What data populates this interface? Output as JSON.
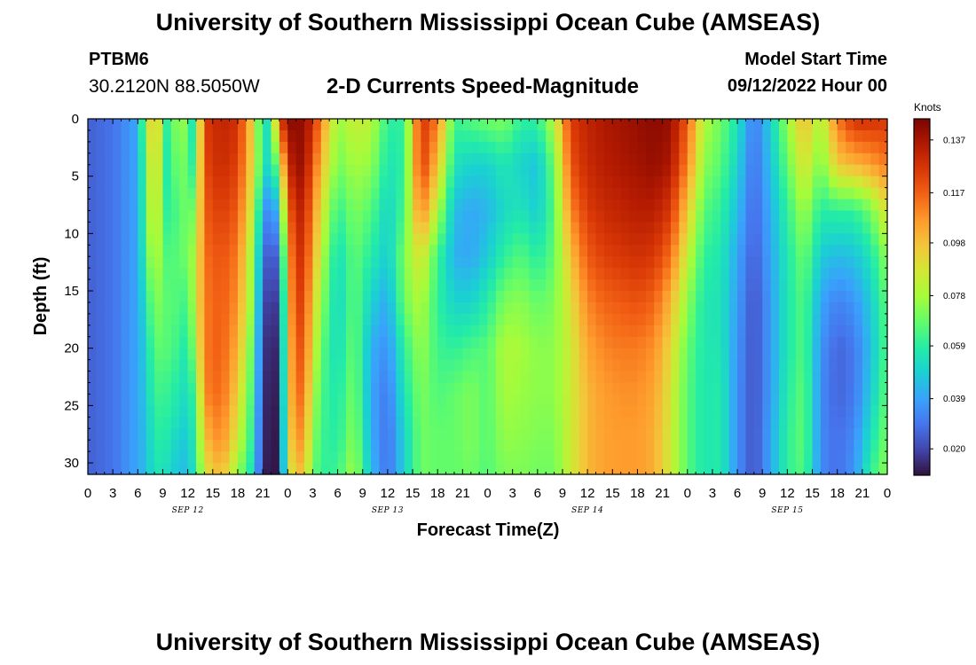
{
  "header": {
    "title": "University of Southern Mississippi Ocean Cube (AMSEAS)",
    "station": "PTBM6",
    "coords": "30.2120N  88.5050W",
    "plot_title": "2-D Currents Speed-Magnitude",
    "model_start_label": "Model Start Time",
    "model_start_value": "09/12/2022 Hour 00"
  },
  "footer": {
    "title": "University of Southern Mississippi Ocean Cube (AMSEAS)"
  },
  "chart_data": {
    "type": "heatmap",
    "title": "2-D Currents Speed-Magnitude",
    "xlabel": "Forecast Time(Z)",
    "ylabel": "Depth (ft)",
    "x_range_hours": [
      0,
      96
    ],
    "y_range_ft": [
      0,
      31
    ],
    "x_tick_labels": [
      "0",
      "3",
      "6",
      "9",
      "12",
      "15",
      "18",
      "21",
      "0",
      "3",
      "6",
      "9",
      "12",
      "15",
      "18",
      "21",
      "0",
      "3",
      "6",
      "9",
      "12",
      "15",
      "18",
      "21",
      "0",
      "3",
      "6",
      "9",
      "12",
      "15",
      "18",
      "21",
      "0"
    ],
    "date_labels": [
      {
        "label": "SEP 12",
        "hour": 12
      },
      {
        "label": "SEP 13",
        "hour": 36
      },
      {
        "label": "SEP 14",
        "hour": 60
      },
      {
        "label": "SEP 15",
        "hour": 84
      }
    ],
    "y_tick_labels": [
      "0",
      "5",
      "10",
      "15",
      "20",
      "25",
      "30"
    ],
    "y_ticks": [
      0,
      5,
      10,
      15,
      20,
      25,
      30
    ],
    "colorbar": {
      "unit": "Knots",
      "tick_labels": [
        "0.137",
        "0.117",
        "0.098",
        "0.078",
        "0.059",
        "0.039",
        "0.020"
      ],
      "tick_values": [
        0.137,
        0.117,
        0.098,
        0.078,
        0.059,
        0.039,
        0.02
      ],
      "range": [
        0.01,
        0.145
      ],
      "colormap": [
        "#30123b",
        "#4145ab",
        "#4675ed",
        "#39a2fc",
        "#1bcfd4",
        "#24eca6",
        "#61fc6c",
        "#a4fc3b",
        "#d1e834",
        "#f3c63a",
        "#fe9b2d",
        "#f36315",
        "#d93806",
        "#b11901",
        "#7a0402"
      ]
    },
    "depths_ft": [
      0,
      4,
      8,
      12,
      16,
      20,
      24,
      28,
      31
    ],
    "times_hours": [
      0,
      3,
      6,
      7,
      8,
      9,
      10,
      11,
      12,
      13,
      14,
      16,
      18,
      20,
      21,
      22,
      23,
      24,
      25,
      26,
      27,
      28,
      30,
      32,
      34,
      36,
      38,
      40,
      42,
      44,
      46,
      48,
      50,
      52,
      54,
      56,
      58,
      60,
      62,
      64,
      66,
      68,
      70,
      72,
      74,
      76,
      78,
      80,
      82,
      84,
      86,
      88,
      90,
      92,
      94,
      96
    ],
    "speed_knots": [
      [
        0.025,
        0.025,
        0.025,
        0.025,
        0.025,
        0.025,
        0.025,
        0.025,
        0.025
      ],
      [
        0.029,
        0.029,
        0.029,
        0.029,
        0.029,
        0.029,
        0.029,
        0.029,
        0.029
      ],
      [
        0.04,
        0.04,
        0.04,
        0.04,
        0.04,
        0.04,
        0.04,
        0.04,
        0.04
      ],
      [
        0.08,
        0.07,
        0.068,
        0.063,
        0.055,
        0.05,
        0.048,
        0.045,
        0.045
      ],
      [
        0.102,
        0.098,
        0.093,
        0.085,
        0.075,
        0.068,
        0.062,
        0.058,
        0.055
      ],
      [
        0.075,
        0.07,
        0.068,
        0.068,
        0.068,
        0.066,
        0.062,
        0.058,
        0.055
      ],
      [
        0.045,
        0.045,
        0.052,
        0.062,
        0.066,
        0.066,
        0.06,
        0.055,
        0.05
      ],
      [
        0.098,
        0.09,
        0.075,
        0.07,
        0.065,
        0.06,
        0.055,
        0.048,
        0.045
      ],
      [
        0.05,
        0.05,
        0.062,
        0.068,
        0.062,
        0.056,
        0.052,
        0.048,
        0.045
      ],
      [
        0.065,
        0.07,
        0.078,
        0.084,
        0.086,
        0.08,
        0.066,
        0.06,
        0.058
      ],
      [
        0.125,
        0.122,
        0.118,
        0.114,
        0.112,
        0.112,
        0.11,
        0.098,
        0.088
      ],
      [
        0.132,
        0.13,
        0.125,
        0.12,
        0.118,
        0.118,
        0.116,
        0.11,
        0.1
      ],
      [
        0.128,
        0.124,
        0.118,
        0.112,
        0.108,
        0.102,
        0.094,
        0.086,
        0.075
      ],
      [
        0.09,
        0.088,
        0.08,
        0.07,
        0.068,
        0.062,
        0.058,
        0.054,
        0.05
      ],
      [
        0.05,
        0.056,
        0.04,
        0.03,
        0.022,
        0.018,
        0.016,
        0.015,
        0.014
      ],
      [
        0.06,
        0.05,
        0.03,
        0.02,
        0.016,
        0.013,
        0.012,
        0.011,
        0.01
      ],
      [
        0.12,
        0.08,
        0.05,
        0.03,
        0.02,
        0.016,
        0.013,
        0.012,
        0.012
      ],
      [
        0.142,
        0.128,
        0.112,
        0.1,
        0.095,
        0.092,
        0.09,
        0.085,
        0.08
      ],
      [
        0.142,
        0.14,
        0.132,
        0.128,
        0.125,
        0.12,
        0.116,
        0.11,
        0.1
      ],
      [
        0.14,
        0.138,
        0.132,
        0.126,
        0.122,
        0.118,
        0.112,
        0.104,
        0.095
      ],
      [
        0.13,
        0.12,
        0.11,
        0.104,
        0.096,
        0.09,
        0.082,
        0.075,
        0.07
      ],
      [
        0.11,
        0.1,
        0.09,
        0.082,
        0.075,
        0.068,
        0.064,
        0.062,
        0.06
      ],
      [
        0.075,
        0.07,
        0.06,
        0.052,
        0.05,
        0.052,
        0.056,
        0.058,
        0.062
      ],
      [
        0.085,
        0.078,
        0.072,
        0.068,
        0.068,
        0.07,
        0.072,
        0.075,
        0.078
      ],
      [
        0.082,
        0.075,
        0.066,
        0.058,
        0.05,
        0.042,
        0.04,
        0.042,
        0.045
      ],
      [
        0.06,
        0.055,
        0.05,
        0.048,
        0.04,
        0.035,
        0.03,
        0.028,
        0.028
      ],
      [
        0.06,
        0.06,
        0.064,
        0.072,
        0.07,
        0.06,
        0.055,
        0.05,
        0.05
      ],
      [
        0.128,
        0.126,
        0.112,
        0.09,
        0.08,
        0.076,
        0.072,
        0.07,
        0.07
      ],
      [
        0.112,
        0.098,
        0.08,
        0.062,
        0.06,
        0.062,
        0.065,
        0.068,
        0.068
      ],
      [
        0.062,
        0.055,
        0.045,
        0.042,
        0.05,
        0.06,
        0.068,
        0.068,
        0.068
      ],
      [
        0.066,
        0.05,
        0.04,
        0.04,
        0.05,
        0.064,
        0.072,
        0.072,
        0.07
      ],
      [
        0.07,
        0.05,
        0.043,
        0.048,
        0.058,
        0.066,
        0.066,
        0.066,
        0.065
      ],
      [
        0.072,
        0.056,
        0.052,
        0.06,
        0.072,
        0.08,
        0.078,
        0.075,
        0.072
      ],
      [
        0.06,
        0.05,
        0.055,
        0.066,
        0.074,
        0.078,
        0.076,
        0.074,
        0.072
      ],
      [
        0.06,
        0.046,
        0.048,
        0.058,
        0.068,
        0.074,
        0.074,
        0.072,
        0.07
      ],
      [
        0.082,
        0.07,
        0.066,
        0.068,
        0.072,
        0.074,
        0.074,
        0.072,
        0.07
      ],
      [
        0.125,
        0.12,
        0.11,
        0.098,
        0.09,
        0.086,
        0.086,
        0.086,
        0.086
      ],
      [
        0.132,
        0.13,
        0.125,
        0.118,
        0.11,
        0.104,
        0.1,
        0.1,
        0.1
      ],
      [
        0.136,
        0.134,
        0.13,
        0.124,
        0.116,
        0.11,
        0.106,
        0.105,
        0.105
      ],
      [
        0.138,
        0.136,
        0.132,
        0.126,
        0.118,
        0.112,
        0.108,
        0.106,
        0.106
      ],
      [
        0.14,
        0.138,
        0.134,
        0.128,
        0.12,
        0.112,
        0.108,
        0.106,
        0.106
      ],
      [
        0.142,
        0.14,
        0.134,
        0.126,
        0.116,
        0.108,
        0.104,
        0.102,
        0.102
      ],
      [
        0.14,
        0.136,
        0.126,
        0.114,
        0.1,
        0.092,
        0.088,
        0.086,
        0.086
      ],
      [
        0.118,
        0.11,
        0.096,
        0.084,
        0.074,
        0.068,
        0.066,
        0.066,
        0.066
      ],
      [
        0.08,
        0.074,
        0.066,
        0.06,
        0.056,
        0.056,
        0.056,
        0.056,
        0.056
      ],
      [
        0.07,
        0.066,
        0.06,
        0.056,
        0.055,
        0.056,
        0.058,
        0.058,
        0.058
      ],
      [
        0.055,
        0.05,
        0.045,
        0.04,
        0.038,
        0.036,
        0.035,
        0.035,
        0.035
      ],
      [
        0.03,
        0.028,
        0.026,
        0.024,
        0.022,
        0.022,
        0.022,
        0.022,
        0.022
      ],
      [
        0.05,
        0.046,
        0.042,
        0.04,
        0.038,
        0.038,
        0.038,
        0.04,
        0.04
      ],
      [
        0.075,
        0.068,
        0.06,
        0.056,
        0.056,
        0.056,
        0.058,
        0.06,
        0.06
      ],
      [
        0.1,
        0.09,
        0.078,
        0.07,
        0.066,
        0.066,
        0.068,
        0.068,
        0.066
      ],
      [
        0.078,
        0.07,
        0.058,
        0.048,
        0.04,
        0.036,
        0.034,
        0.034,
        0.034
      ],
      [
        0.112,
        0.096,
        0.06,
        0.044,
        0.032,
        0.026,
        0.026,
        0.028,
        0.028
      ],
      [
        0.128,
        0.1,
        0.06,
        0.046,
        0.036,
        0.03,
        0.03,
        0.034,
        0.036
      ],
      [
        0.128,
        0.105,
        0.07,
        0.055,
        0.048,
        0.045,
        0.048,
        0.054,
        0.06
      ],
      [
        0.126,
        0.112,
        0.09,
        0.075,
        0.068,
        0.066,
        0.068,
        0.072,
        0.075
      ]
    ]
  }
}
